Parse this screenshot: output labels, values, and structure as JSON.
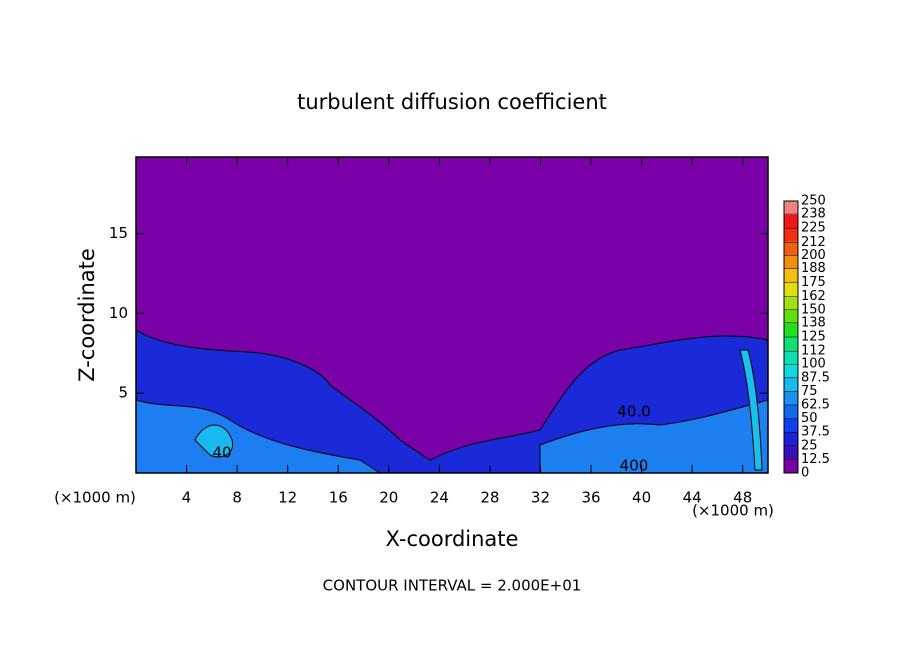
{
  "chart_data": {
    "type": "contour",
    "title": "turbulent diffusion coefficient",
    "xlabel": "X-coordinate",
    "ylabel": "Z-coordinate",
    "x_unit": "(×1000 m)",
    "xlim": [
      0,
      50
    ],
    "ylim": [
      0,
      19.8
    ],
    "xticks": [
      4,
      8,
      12,
      16,
      20,
      24,
      28,
      32,
      36,
      40,
      44,
      48
    ],
    "yticks": [
      5,
      10,
      15
    ],
    "contour_labels": [
      "40",
      "40.0",
      "400"
    ],
    "footnote": "CONTOUR INTERVAL = 2.000E+01",
    "colorbar": {
      "ticks": [
        0,
        12.5,
        25,
        37.5,
        50,
        62.5,
        75,
        87.5,
        100,
        112,
        125,
        138,
        150,
        162,
        175,
        188,
        200,
        212,
        225,
        238,
        250
      ],
      "colors": [
        "#7a00a8",
        "#3a10b8",
        "#1c20d8",
        "#1040ee",
        "#1468f0",
        "#1c90f0",
        "#18b8f0",
        "#10d8e0",
        "#10e0b0",
        "#10e070",
        "#20e020",
        "#60e010",
        "#a0e010",
        "#e0e010",
        "#f0c010",
        "#f09010",
        "#f06010",
        "#f03010",
        "#f01818",
        "#f08080"
      ]
    }
  }
}
